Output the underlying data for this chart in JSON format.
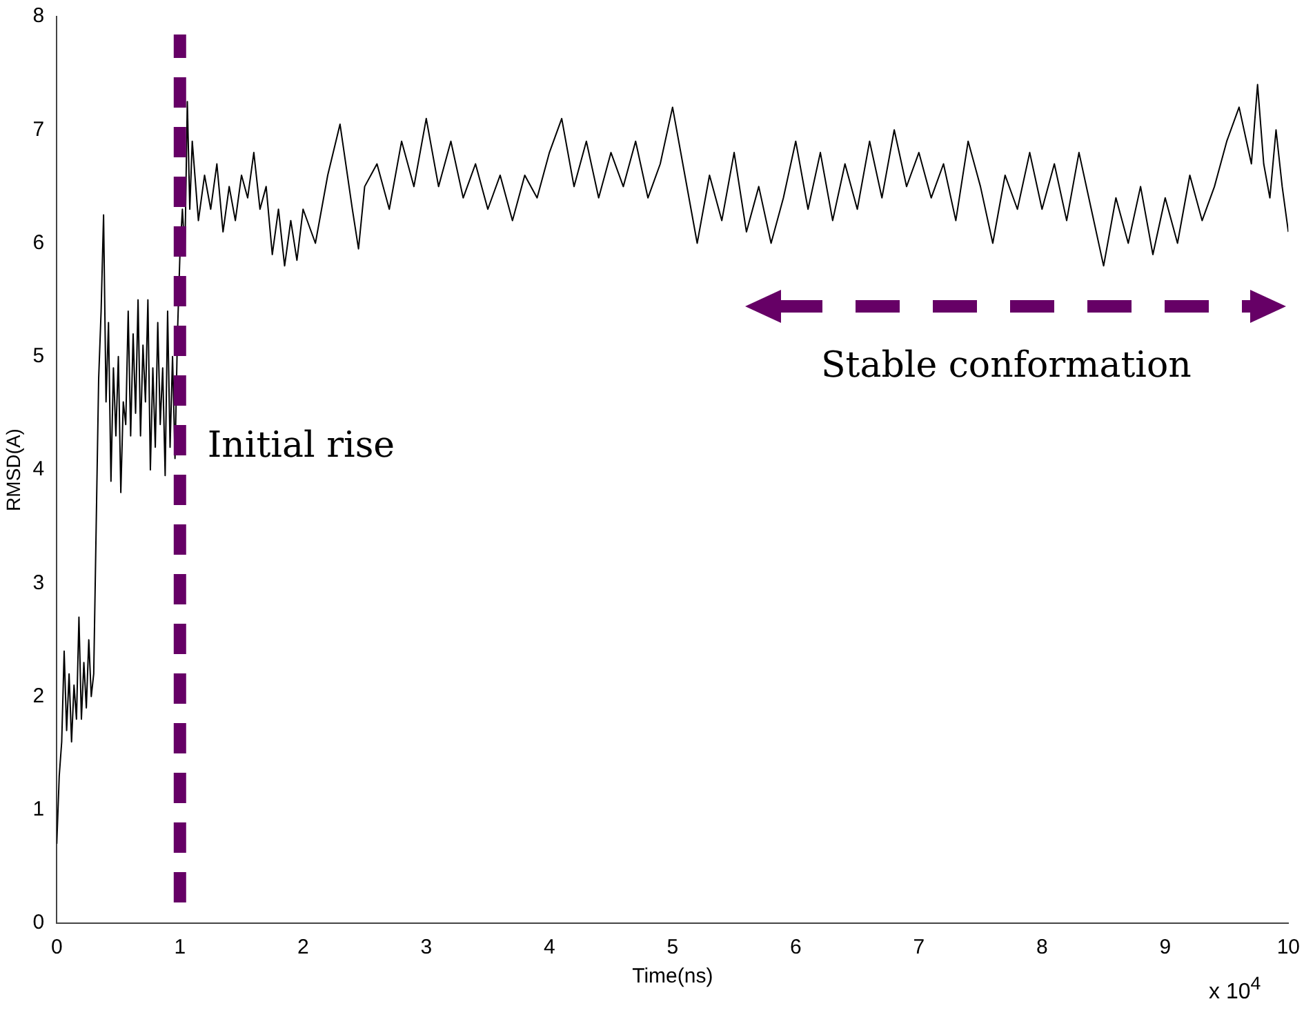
{
  "chart_data": {
    "type": "line",
    "xlabel": "Time(ns)",
    "ylabel": "RMSD(A)",
    "xlim": [
      0,
      10
    ],
    "xticks": [
      0,
      1,
      2,
      3,
      4,
      5,
      6,
      7,
      8,
      9,
      10
    ],
    "ylim": [
      0,
      8
    ],
    "yticks": [
      0,
      1,
      2,
      3,
      4,
      5,
      6,
      7,
      8
    ],
    "grid": false,
    "legend": false,
    "marker": "none",
    "line_style": "solid",
    "series": [
      {
        "color": "#000000",
        "x": [
          0,
          0.02,
          0.04,
          0.06,
          0.08,
          0.1,
          0.12,
          0.14,
          0.16,
          0.18,
          0.2,
          0.22,
          0.24,
          0.26,
          0.28,
          0.3,
          0.32,
          0.34,
          0.36,
          0.38,
          0.4,
          0.42,
          0.44,
          0.46,
          0.48,
          0.5,
          0.52,
          0.54,
          0.56,
          0.58,
          0.6,
          0.62,
          0.64,
          0.66,
          0.68,
          0.7,
          0.72,
          0.74,
          0.76,
          0.78,
          0.8,
          0.82,
          0.84,
          0.86,
          0.88,
          0.9,
          0.92,
          0.94,
          0.96,
          0.98,
          1.0,
          1.02,
          1.04,
          1.06,
          1.08,
          1.1,
          1.15,
          1.2,
          1.25,
          1.3,
          1.35,
          1.4,
          1.45,
          1.5,
          1.55,
          1.6,
          1.65,
          1.7,
          1.75,
          1.8,
          1.85,
          1.9,
          1.95,
          2.0,
          2.1,
          2.2,
          2.3,
          2.4,
          2.45,
          2.5,
          2.6,
          2.7,
          2.8,
          2.9,
          3.0,
          3.1,
          3.2,
          3.3,
          3.4,
          3.5,
          3.6,
          3.7,
          3.8,
          3.9,
          4.0,
          4.1,
          4.2,
          4.3,
          4.4,
          4.5,
          4.6,
          4.7,
          4.8,
          4.9,
          5.0,
          5.1,
          5.2,
          5.3,
          5.4,
          5.5,
          5.6,
          5.7,
          5.8,
          5.9,
          6.0,
          6.1,
          6.2,
          6.3,
          6.4,
          6.5,
          6.6,
          6.7,
          6.8,
          6.9,
          7.0,
          7.1,
          7.2,
          7.3,
          7.4,
          7.5,
          7.6,
          7.7,
          7.8,
          7.9,
          8.0,
          8.1,
          8.2,
          8.3,
          8.4,
          8.5,
          8.6,
          8.7,
          8.8,
          8.9,
          9.0,
          9.1,
          9.2,
          9.3,
          9.4,
          9.5,
          9.6,
          9.7,
          9.75,
          9.8,
          9.85,
          9.9,
          9.95,
          10.0
        ],
        "values": [
          0.7,
          1.3,
          1.6,
          2.4,
          1.7,
          2.2,
          1.6,
          2.1,
          1.8,
          2.7,
          1.8,
          2.3,
          1.9,
          2.5,
          2.0,
          2.2,
          3.5,
          4.8,
          5.4,
          6.25,
          4.6,
          5.3,
          3.9,
          4.9,
          4.3,
          5.0,
          3.8,
          4.6,
          4.4,
          5.4,
          4.3,
          5.2,
          4.5,
          5.5,
          4.3,
          5.1,
          4.6,
          5.5,
          4.0,
          4.9,
          4.2,
          5.3,
          4.4,
          4.9,
          3.95,
          5.4,
          4.2,
          5.0,
          4.1,
          5.2,
          5.9,
          6.3,
          5.9,
          7.25,
          6.3,
          6.9,
          6.2,
          6.6,
          6.3,
          6.7,
          6.1,
          6.5,
          6.2,
          6.6,
          6.4,
          6.8,
          6.3,
          6.5,
          5.9,
          6.3,
          5.8,
          6.2,
          5.85,
          6.3,
          6.0,
          6.6,
          7.05,
          6.3,
          5.95,
          6.5,
          6.7,
          6.3,
          6.9,
          6.5,
          7.1,
          6.5,
          6.9,
          6.4,
          6.7,
          6.3,
          6.6,
          6.2,
          6.6,
          6.4,
          6.8,
          7.1,
          6.5,
          6.9,
          6.4,
          6.8,
          6.5,
          6.9,
          6.4,
          6.7,
          7.2,
          6.6,
          6.0,
          6.6,
          6.2,
          6.8,
          6.1,
          6.5,
          6.0,
          6.4,
          6.9,
          6.3,
          6.8,
          6.2,
          6.7,
          6.3,
          6.9,
          6.4,
          7.0,
          6.5,
          6.8,
          6.4,
          6.7,
          6.2,
          6.9,
          6.5,
          6.0,
          6.6,
          6.3,
          6.8,
          6.3,
          6.7,
          6.2,
          6.8,
          6.3,
          5.8,
          6.4,
          6.0,
          6.5,
          5.9,
          6.4,
          6.0,
          6.6,
          6.2,
          6.5,
          6.9,
          7.2,
          6.7,
          7.4,
          6.7,
          6.4,
          7.0,
          6.5,
          6.1
        ]
      }
    ],
    "ref_lines": [
      {
        "axis": "x",
        "value": 1,
        "label": "Initial rise",
        "color": "#660066",
        "line_style": "dashed"
      }
    ],
    "annotations": [
      "Stable conformation",
      "x 10$^{4}$"
    ]
  }
}
